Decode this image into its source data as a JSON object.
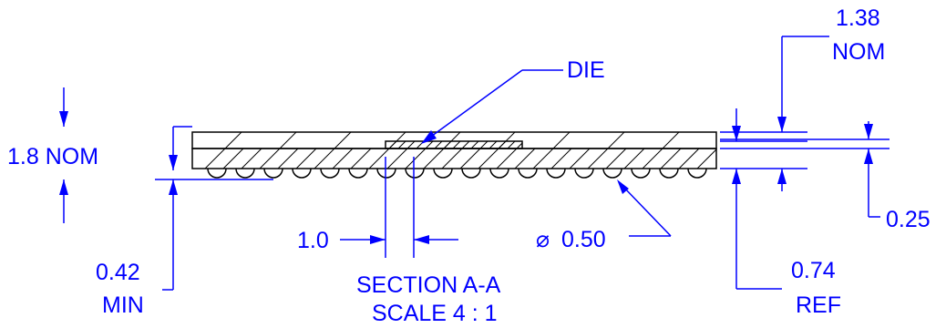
{
  "drawing": {
    "labels": {
      "nom_1_8": "1.8 NOM",
      "min_0_42_value": "0.42",
      "min_0_42_qual": "MIN",
      "die": "DIE",
      "pitch": "1.0",
      "ball_diameter": "0.50",
      "section_title": "SECTION A-A",
      "section_scale": "SCALE 4 : 1",
      "nom_1_38_value": "1.38",
      "nom_1_38_qual": "NOM",
      "dim_0_25": "0.25",
      "ref_0_74_value": "0.74",
      "ref_0_74_qual": "REF"
    },
    "diameter_symbol": "⌀",
    "colors": {
      "dimension": "#0000ff",
      "outline": "#000000",
      "background": "#ffffff"
    },
    "ball_count": 18
  }
}
